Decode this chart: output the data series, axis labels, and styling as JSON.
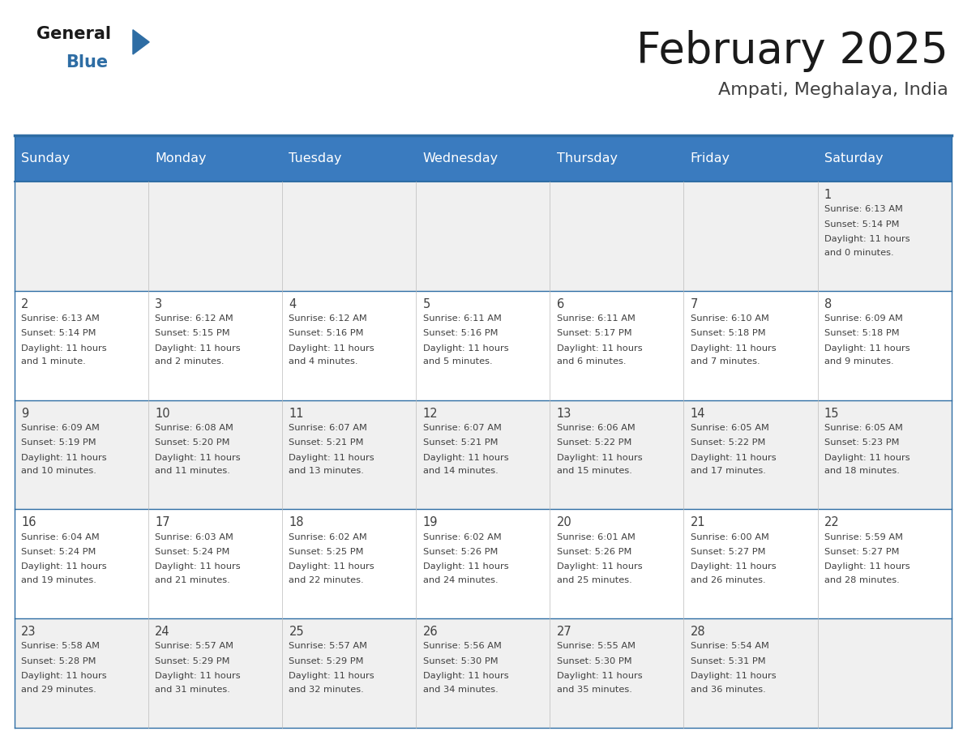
{
  "title": "February 2025",
  "subtitle": "Ampati, Meghalaya, India",
  "header_bg": "#3A7BBF",
  "header_text_color": "#FFFFFF",
  "cell_bg_alt": "#F0F0F0",
  "cell_bg_norm": "#FFFFFF",
  "border_color": "#2E6DA4",
  "day_names": [
    "Sunday",
    "Monday",
    "Tuesday",
    "Wednesday",
    "Thursday",
    "Friday",
    "Saturday"
  ],
  "days_data": [
    {
      "day": 1,
      "col": 6,
      "row": 0,
      "sunrise": "6:13 AM",
      "sunset": "5:14 PM",
      "daylight_line1": "Daylight: 11 hours",
      "daylight_line2": "and 0 minutes."
    },
    {
      "day": 2,
      "col": 0,
      "row": 1,
      "sunrise": "6:13 AM",
      "sunset": "5:14 PM",
      "daylight_line1": "Daylight: 11 hours",
      "daylight_line2": "and 1 minute."
    },
    {
      "day": 3,
      "col": 1,
      "row": 1,
      "sunrise": "6:12 AM",
      "sunset": "5:15 PM",
      "daylight_line1": "Daylight: 11 hours",
      "daylight_line2": "and 2 minutes."
    },
    {
      "day": 4,
      "col": 2,
      "row": 1,
      "sunrise": "6:12 AM",
      "sunset": "5:16 PM",
      "daylight_line1": "Daylight: 11 hours",
      "daylight_line2": "and 4 minutes."
    },
    {
      "day": 5,
      "col": 3,
      "row": 1,
      "sunrise": "6:11 AM",
      "sunset": "5:16 PM",
      "daylight_line1": "Daylight: 11 hours",
      "daylight_line2": "and 5 minutes."
    },
    {
      "day": 6,
      "col": 4,
      "row": 1,
      "sunrise": "6:11 AM",
      "sunset": "5:17 PM",
      "daylight_line1": "Daylight: 11 hours",
      "daylight_line2": "and 6 minutes."
    },
    {
      "day": 7,
      "col": 5,
      "row": 1,
      "sunrise": "6:10 AM",
      "sunset": "5:18 PM",
      "daylight_line1": "Daylight: 11 hours",
      "daylight_line2": "and 7 minutes."
    },
    {
      "day": 8,
      "col": 6,
      "row": 1,
      "sunrise": "6:09 AM",
      "sunset": "5:18 PM",
      "daylight_line1": "Daylight: 11 hours",
      "daylight_line2": "and 9 minutes."
    },
    {
      "day": 9,
      "col": 0,
      "row": 2,
      "sunrise": "6:09 AM",
      "sunset": "5:19 PM",
      "daylight_line1": "Daylight: 11 hours",
      "daylight_line2": "and 10 minutes."
    },
    {
      "day": 10,
      "col": 1,
      "row": 2,
      "sunrise": "6:08 AM",
      "sunset": "5:20 PM",
      "daylight_line1": "Daylight: 11 hours",
      "daylight_line2": "and 11 minutes."
    },
    {
      "day": 11,
      "col": 2,
      "row": 2,
      "sunrise": "6:07 AM",
      "sunset": "5:21 PM",
      "daylight_line1": "Daylight: 11 hours",
      "daylight_line2": "and 13 minutes."
    },
    {
      "day": 12,
      "col": 3,
      "row": 2,
      "sunrise": "6:07 AM",
      "sunset": "5:21 PM",
      "daylight_line1": "Daylight: 11 hours",
      "daylight_line2": "and 14 minutes."
    },
    {
      "day": 13,
      "col": 4,
      "row": 2,
      "sunrise": "6:06 AM",
      "sunset": "5:22 PM",
      "daylight_line1": "Daylight: 11 hours",
      "daylight_line2": "and 15 minutes."
    },
    {
      "day": 14,
      "col": 5,
      "row": 2,
      "sunrise": "6:05 AM",
      "sunset": "5:22 PM",
      "daylight_line1": "Daylight: 11 hours",
      "daylight_line2": "and 17 minutes."
    },
    {
      "day": 15,
      "col": 6,
      "row": 2,
      "sunrise": "6:05 AM",
      "sunset": "5:23 PM",
      "daylight_line1": "Daylight: 11 hours",
      "daylight_line2": "and 18 minutes."
    },
    {
      "day": 16,
      "col": 0,
      "row": 3,
      "sunrise": "6:04 AM",
      "sunset": "5:24 PM",
      "daylight_line1": "Daylight: 11 hours",
      "daylight_line2": "and 19 minutes."
    },
    {
      "day": 17,
      "col": 1,
      "row": 3,
      "sunrise": "6:03 AM",
      "sunset": "5:24 PM",
      "daylight_line1": "Daylight: 11 hours",
      "daylight_line2": "and 21 minutes."
    },
    {
      "day": 18,
      "col": 2,
      "row": 3,
      "sunrise": "6:02 AM",
      "sunset": "5:25 PM",
      "daylight_line1": "Daylight: 11 hours",
      "daylight_line2": "and 22 minutes."
    },
    {
      "day": 19,
      "col": 3,
      "row": 3,
      "sunrise": "6:02 AM",
      "sunset": "5:26 PM",
      "daylight_line1": "Daylight: 11 hours",
      "daylight_line2": "and 24 minutes."
    },
    {
      "day": 20,
      "col": 4,
      "row": 3,
      "sunrise": "6:01 AM",
      "sunset": "5:26 PM",
      "daylight_line1": "Daylight: 11 hours",
      "daylight_line2": "and 25 minutes."
    },
    {
      "day": 21,
      "col": 5,
      "row": 3,
      "sunrise": "6:00 AM",
      "sunset": "5:27 PM",
      "daylight_line1": "Daylight: 11 hours",
      "daylight_line2": "and 26 minutes."
    },
    {
      "day": 22,
      "col": 6,
      "row": 3,
      "sunrise": "5:59 AM",
      "sunset": "5:27 PM",
      "daylight_line1": "Daylight: 11 hours",
      "daylight_line2": "and 28 minutes."
    },
    {
      "day": 23,
      "col": 0,
      "row": 4,
      "sunrise": "5:58 AM",
      "sunset": "5:28 PM",
      "daylight_line1": "Daylight: 11 hours",
      "daylight_line2": "and 29 minutes."
    },
    {
      "day": 24,
      "col": 1,
      "row": 4,
      "sunrise": "5:57 AM",
      "sunset": "5:29 PM",
      "daylight_line1": "Daylight: 11 hours",
      "daylight_line2": "and 31 minutes."
    },
    {
      "day": 25,
      "col": 2,
      "row": 4,
      "sunrise": "5:57 AM",
      "sunset": "5:29 PM",
      "daylight_line1": "Daylight: 11 hours",
      "daylight_line2": "and 32 minutes."
    },
    {
      "day": 26,
      "col": 3,
      "row": 4,
      "sunrise": "5:56 AM",
      "sunset": "5:30 PM",
      "daylight_line1": "Daylight: 11 hours",
      "daylight_line2": "and 34 minutes."
    },
    {
      "day": 27,
      "col": 4,
      "row": 4,
      "sunrise": "5:55 AM",
      "sunset": "5:30 PM",
      "daylight_line1": "Daylight: 11 hours",
      "daylight_line2": "and 35 minutes."
    },
    {
      "day": 28,
      "col": 5,
      "row": 4,
      "sunrise": "5:54 AM",
      "sunset": "5:31 PM",
      "daylight_line1": "Daylight: 11 hours",
      "daylight_line2": "and 36 minutes."
    }
  ],
  "num_rows": 5,
  "num_cols": 7,
  "text_color": "#404040",
  "day_num_color": "#404040",
  "line_color": "#2E6DA4",
  "logo_general_color": "#1a1a1a",
  "logo_blue_color": "#2E6DA4",
  "logo_triangle_color": "#2E6DA4"
}
